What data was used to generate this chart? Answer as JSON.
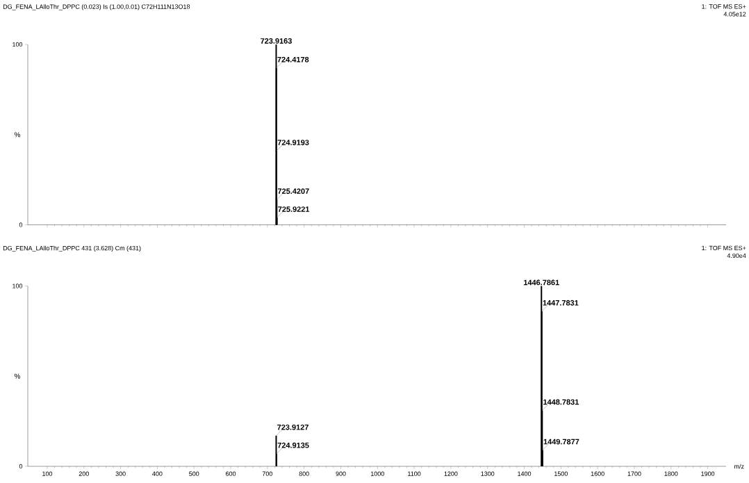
{
  "chart_data": [
    {
      "type": "bar",
      "title": "DG_FENA_LAlloThr_DPPC  (0.023) Is (1.00,0.01) C72H111N13O18",
      "ylabel": "%",
      "annotations": [
        "1: TOF MS ES+",
        "4.05e12",
        {
          "text": "723.9163",
          "x": 723.9163,
          "y": 100
        },
        {
          "text": "724.4178",
          "x": 724.4178,
          "y": 87
        },
        {
          "text": "724.9193",
          "x": 724.9193,
          "y": 41
        },
        {
          "text": "725.4207",
          "x": 725.4207,
          "y": 14
        },
        {
          "text": "725.9221",
          "x": 725.9221,
          "y": 4
        }
      ],
      "x": [
        723.9163,
        724.4178,
        724.9193,
        725.4207,
        725.9221
      ],
      "values": [
        100,
        87,
        41,
        14,
        4
      ],
      "color": "#000000",
      "xlim": [
        47,
        1950
      ],
      "xticks": [
        100,
        200,
        300,
        400,
        500,
        600,
        700,
        800,
        900,
        1000,
        1100,
        1200,
        1300,
        1400,
        1500,
        1600,
        1700,
        1800,
        1900
      ],
      "ylim": [
        0,
        100
      ],
      "yticks": [
        0,
        100
      ],
      "tick_labels": "y"
    },
    {
      "type": "bar",
      "title": "DG_FENA_LAlloThr_DPPC 431 (3.628) Cm (431)",
      "ylabel": "%",
      "xlabel": "m/z",
      "annotations": [
        "1: TOF MS ES+",
        "4.90e4",
        {
          "text": "723.9127",
          "x": 723.9127,
          "y": 17
        },
        {
          "text": "724.9135",
          "x": 724.9135,
          "y": 7
        },
        {
          "text": "1446.7861",
          "x": 1446.7861,
          "y": 100
        },
        {
          "text": "1447.7831",
          "x": 1447.7831,
          "y": 86
        },
        {
          "text": "1448.7831",
          "x": 1448.7831,
          "y": 31
        },
        {
          "text": "1449.7877",
          "x": 1449.7877,
          "y": 9
        }
      ],
      "x": [
        723.9127,
        724.9135,
        1446.7861,
        1447.7831,
        1448.7831,
        1449.7877
      ],
      "values": [
        17,
        7,
        100,
        86,
        31,
        9
      ],
      "color": "#000000",
      "xlim": [
        47,
        1950
      ],
      "xticks": [
        100,
        200,
        300,
        400,
        500,
        600,
        700,
        800,
        900,
        1000,
        1100,
        1200,
        1300,
        1400,
        1500,
        1600,
        1700,
        1800,
        1900
      ],
      "ylim": [
        0,
        100
      ],
      "yticks": [
        0,
        100
      ]
    }
  ]
}
